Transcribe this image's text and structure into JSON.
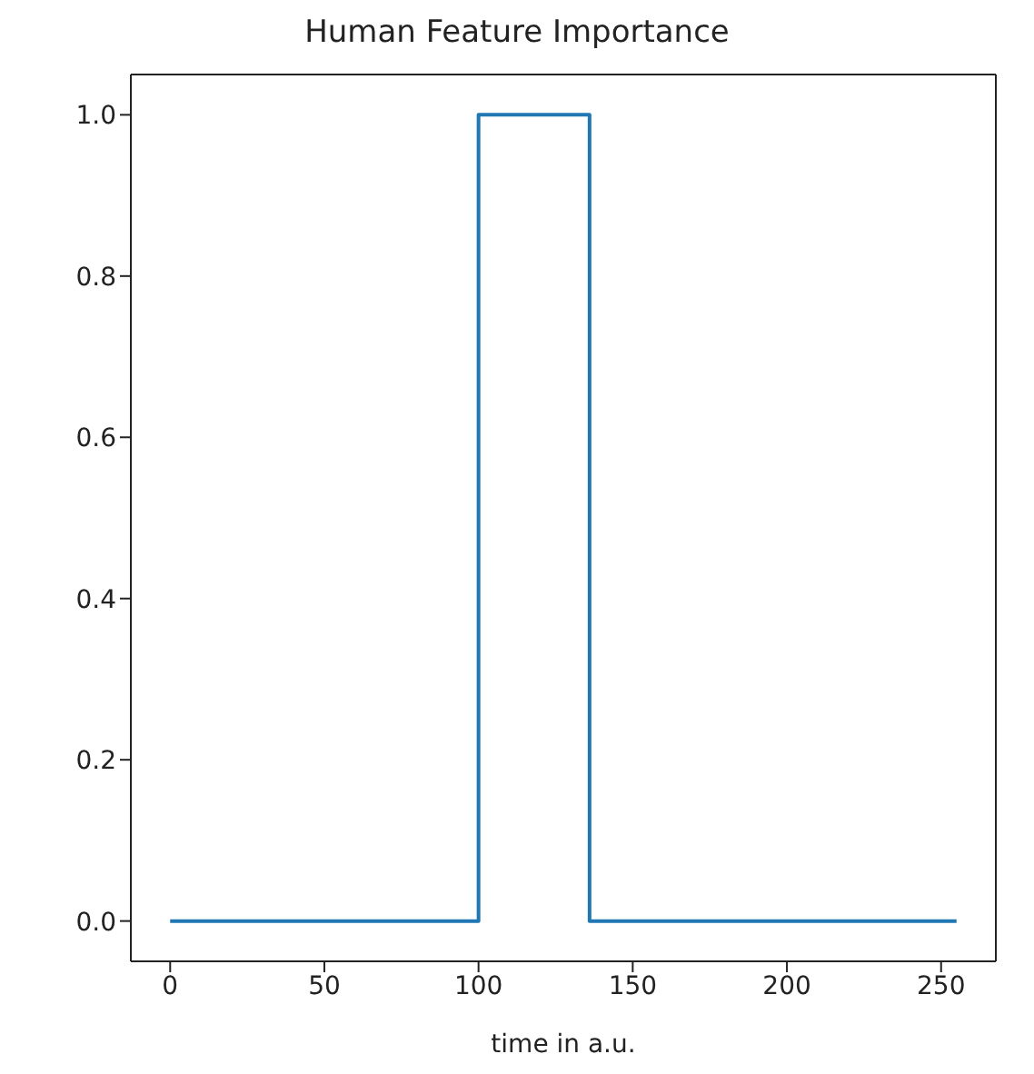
{
  "chart_data": {
    "type": "line",
    "title": "Human Feature Importance",
    "xlabel": "time in a.u.",
    "x": [
      0,
      100,
      100,
      136,
      136,
      255
    ],
    "series": [
      {
        "color": "#1f77b4",
        "values": [
          0,
          0,
          1,
          1,
          0,
          0
        ]
      }
    ],
    "xlim": [
      -12.75,
      267.75
    ],
    "xticks": [
      0,
      50,
      100,
      150,
      200,
      250
    ],
    "ylim": [
      -0.05,
      1.05
    ],
    "yticks": [
      {
        "value": 0,
        "label": "0.0"
      },
      {
        "value": 0.2,
        "label": "0.2"
      },
      {
        "value": 0.4,
        "label": "0.4"
      },
      {
        "value": 0.6,
        "label": "0.6"
      },
      {
        "value": 0.8,
        "label": "0.8"
      },
      {
        "value": 1,
        "label": "1.0"
      }
    ],
    "grid": false,
    "marker": "none",
    "line_style": "solid"
  }
}
